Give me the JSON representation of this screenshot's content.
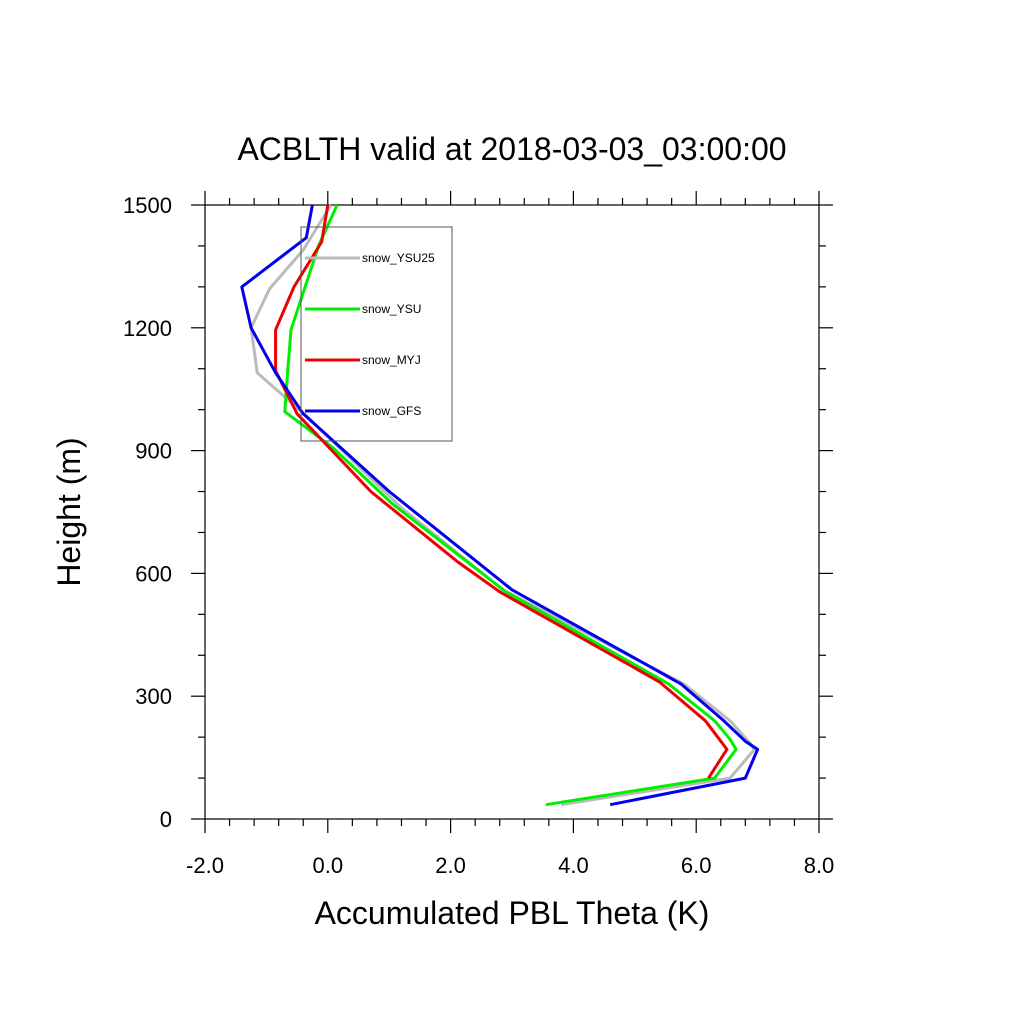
{
  "chart_data": {
    "type": "line",
    "title": "ACBLTH valid at 2018-03-03_03:00:00",
    "xlabel": "Accumulated PBL Theta (K)",
    "ylabel": "Height (m)",
    "xlim": [
      -2.0,
      8.0
    ],
    "ylim": [
      0,
      1500
    ],
    "x_major_ticks": [
      -2.0,
      0.0,
      2.0,
      4.0,
      6.0,
      8.0
    ],
    "x_tick_labels": [
      "-2.0",
      "0.0",
      "2.0",
      "4.0",
      "6.0",
      "8.0"
    ],
    "x_minor_ticks": [
      -1.6,
      -1.2,
      -0.8,
      -0.4,
      0.4,
      0.8,
      1.2,
      1.6,
      2.4,
      2.8,
      3.2,
      3.6,
      4.4,
      4.8,
      5.2,
      5.6,
      6.4,
      6.8,
      7.2,
      7.6
    ],
    "y_major_ticks": [
      0,
      300,
      600,
      900,
      1200,
      1500
    ],
    "y_tick_labels": [
      "0",
      "300",
      "600",
      "900",
      "1200",
      "1500"
    ],
    "y_minor_ticks": [
      100,
      200,
      400,
      500,
      700,
      800,
      1000,
      1100,
      1300,
      1400
    ],
    "grid": false,
    "legend_position": "upper-left-inside",
    "series": [
      {
        "name": "snow_YSU25",
        "color": "#bbbbbb",
        "points": [
          [
            3.8,
            35
          ],
          [
            6.55,
            100
          ],
          [
            6.95,
            170
          ],
          [
            6.85,
            190
          ],
          [
            6.55,
            240
          ],
          [
            5.8,
            330
          ],
          [
            2.85,
            560
          ],
          [
            1.2,
            760
          ],
          [
            -0.35,
            985
          ],
          [
            -1.15,
            1090
          ],
          [
            -1.25,
            1200
          ],
          [
            -0.95,
            1295
          ],
          [
            -0.4,
            1390
          ],
          [
            0.05,
            1500
          ]
        ]
      },
      {
        "name": "snow_YSU",
        "color": "#00ee00",
        "points": [
          [
            3.55,
            35
          ],
          [
            6.3,
            100
          ],
          [
            6.65,
            170
          ],
          [
            6.55,
            195
          ],
          [
            6.3,
            240
          ],
          [
            5.55,
            330
          ],
          [
            2.9,
            555
          ],
          [
            1.05,
            770
          ],
          [
            0.1,
            905
          ],
          [
            -0.7,
            995
          ],
          [
            -0.65,
            1100
          ],
          [
            -0.6,
            1195
          ],
          [
            -0.15,
            1400
          ],
          [
            0.15,
            1500
          ]
        ]
      },
      {
        "name": "snow_MYJ",
        "color": "#ee0000",
        "points": [
          [
            6.2,
            100
          ],
          [
            6.5,
            170
          ],
          [
            6.4,
            190
          ],
          [
            6.15,
            240
          ],
          [
            5.4,
            335
          ],
          [
            2.8,
            555
          ],
          [
            2.1,
            630
          ],
          [
            0.7,
            800
          ],
          [
            -0.5,
            990
          ],
          [
            -0.6,
            1020
          ],
          [
            -0.85,
            1095
          ],
          [
            -0.85,
            1195
          ],
          [
            -0.55,
            1300
          ],
          [
            -0.1,
            1410
          ],
          [
            0.0,
            1500
          ]
        ]
      },
      {
        "name": "snow_GFS",
        "color": "#0000ee",
        "points": [
          [
            4.6,
            35
          ],
          [
            6.8,
            100
          ],
          [
            7.0,
            170
          ],
          [
            6.8,
            190
          ],
          [
            6.45,
            240
          ],
          [
            5.75,
            330
          ],
          [
            3.0,
            560
          ],
          [
            1.0,
            800
          ],
          [
            -0.4,
            990
          ],
          [
            -0.85,
            1090
          ],
          [
            -1.25,
            1200
          ],
          [
            -1.4,
            1300
          ],
          [
            -0.35,
            1420
          ],
          [
            -0.25,
            1500
          ]
        ]
      }
    ]
  }
}
